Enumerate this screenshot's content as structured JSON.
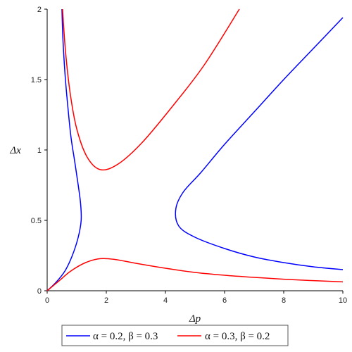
{
  "chart_data": {
    "type": "line",
    "xlabel": "Δp",
    "ylabel": "Δx",
    "xlim": [
      0,
      10
    ],
    "ylim": [
      0,
      2
    ],
    "xticks": [
      "0",
      "2",
      "4",
      "6",
      "8",
      "10"
    ],
    "yticks": [
      "0",
      "0.5",
      "1",
      "1.5",
      "2"
    ],
    "xtick_values": [
      0,
      2,
      4,
      6,
      8,
      10
    ],
    "ytick_values": [
      0,
      0.5,
      1,
      1.5,
      2
    ],
    "grid": false,
    "legend_position": "bottom",
    "series": [
      {
        "name": "α = 0.2, β = 0.3",
        "color": "#0000ff",
        "curves": [
          {
            "label": "left-branch",
            "points": [
              [
                0,
                0
              ],
              [
                0.3,
                0.06
              ],
              [
                0.6,
                0.14
              ],
              [
                0.85,
                0.25
              ],
              [
                1.05,
                0.38
              ],
              [
                1.15,
                0.5
              ],
              [
                1.13,
                0.62
              ],
              [
                1.05,
                0.75
              ],
              [
                0.93,
                0.92
              ],
              [
                0.8,
                1.1
              ],
              [
                0.68,
                1.35
              ],
              [
                0.6,
                1.55
              ],
              [
                0.53,
                1.8
              ],
              [
                0.5,
                2.0
              ]
            ]
          },
          {
            "label": "right-branch",
            "points": [
              [
                10,
                1.94
              ],
              [
                9,
                1.72
              ],
              [
                8,
                1.5
              ],
              [
                7,
                1.27
              ],
              [
                6,
                1.04
              ],
              [
                5.2,
                0.84
              ],
              [
                4.6,
                0.7
              ],
              [
                4.35,
                0.58
              ],
              [
                4.45,
                0.46
              ],
              [
                5,
                0.38
              ],
              [
                6,
                0.3
              ],
              [
                7,
                0.24
              ],
              [
                8,
                0.2
              ],
              [
                9,
                0.17
              ],
              [
                10,
                0.15
              ]
            ]
          }
        ]
      },
      {
        "name": "α = 0.3, β = 0.2",
        "color": "#ff0000",
        "curves": [
          {
            "label": "upper-branch",
            "points": [
              [
                0.52,
                2.0
              ],
              [
                0.62,
                1.7
              ],
              [
                0.78,
                1.4
              ],
              [
                1.0,
                1.15
              ],
              [
                1.35,
                0.95
              ],
              [
                1.8,
                0.86
              ],
              [
                2.4,
                0.9
              ],
              [
                3.2,
                1.05
              ],
              [
                4.2,
                1.3
              ],
              [
                5.3,
                1.6
              ],
              [
                6.5,
                2.0
              ]
            ]
          },
          {
            "label": "lower-branch",
            "points": [
              [
                0,
                0
              ],
              [
                0.4,
                0.07
              ],
              [
                0.8,
                0.14
              ],
              [
                1.3,
                0.2
              ],
              [
                1.8,
                0.228
              ],
              [
                2.3,
                0.222
              ],
              [
                3,
                0.195
              ],
              [
                4,
                0.16
              ],
              [
                5,
                0.13
              ],
              [
                6,
                0.11
              ],
              [
                7,
                0.095
              ],
              [
                8,
                0.082
              ],
              [
                9,
                0.072
              ],
              [
                10,
                0.063
              ]
            ]
          }
        ]
      }
    ]
  }
}
